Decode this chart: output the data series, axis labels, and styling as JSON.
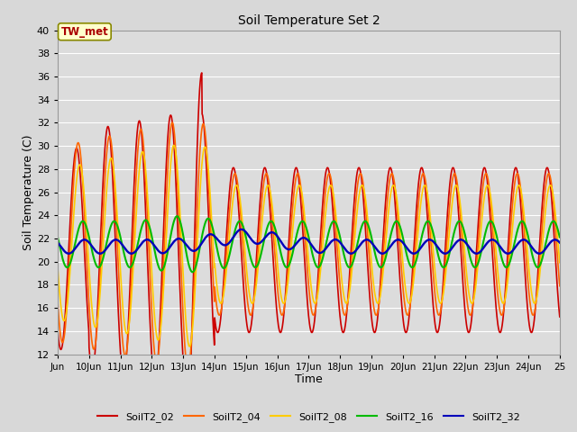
{
  "title": "Soil Temperature Set 2",
  "xlabel": "Time",
  "ylabel": "Soil Temperature (C)",
  "ylim": [
    12,
    40
  ],
  "yticks": [
    12,
    14,
    16,
    18,
    20,
    22,
    24,
    26,
    28,
    30,
    32,
    34,
    36,
    38,
    40
  ],
  "background_color": "#d8d8d8",
  "plot_bg_color": "#dcdcdc",
  "annotation_text": "TW_met",
  "annotation_bg": "#ffffcc",
  "annotation_border": "#888800",
  "annotation_text_color": "#aa0000",
  "series_colors": {
    "SoilT2_02": "#cc0000",
    "SoilT2_04": "#ff6600",
    "SoilT2_08": "#ffcc00",
    "SoilT2_16": "#00bb00",
    "SoilT2_32": "#0000bb"
  },
  "xticks": [
    9,
    10,
    11,
    12,
    13,
    14,
    15,
    16,
    17,
    18,
    19,
    20,
    21,
    22,
    23,
    24,
    25
  ],
  "xticklabels": [
    "Jun",
    "10Jun",
    "11Jun",
    "12Jun",
    "13Jun",
    "14Jun",
    "15Jun",
    "16Jun",
    "17Jun",
    "18Jun",
    "19Jun",
    "20Jun",
    "21Jun",
    "22Jun",
    "23Jun",
    "24Jun",
    "25"
  ],
  "xlim": [
    9.0,
    25.0
  ],
  "grid_color": "#ffffff",
  "legend_order": [
    "SoilT2_02",
    "SoilT2_04",
    "SoilT2_08",
    "SoilT2_16",
    "SoilT2_32"
  ]
}
